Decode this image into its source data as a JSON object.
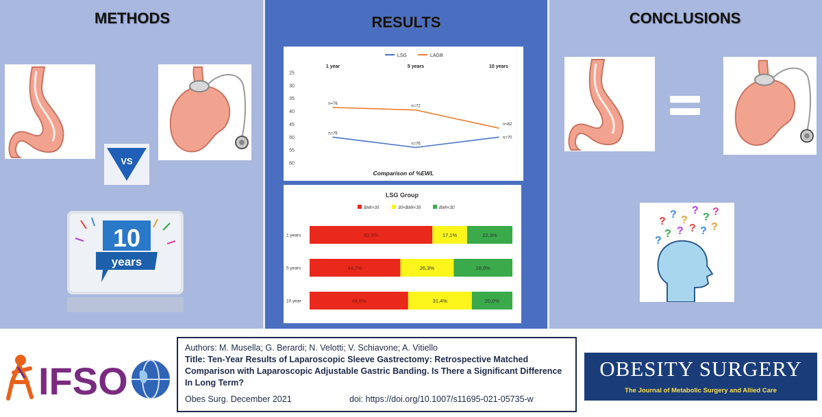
{
  "panels": {
    "methods_title": "METHODS",
    "results_title": "RESULTS",
    "conclusions_title": "CONCLUSIONS",
    "vs_label": "VS",
    "ten_label": "10",
    "years_label": "years",
    "equals_label": "="
  },
  "chart_data": [
    {
      "type": "line",
      "title": "Comparison of %EWL",
      "categories": [
        "1 year",
        "5 years",
        "10 years"
      ],
      "ylim": [
        25,
        60
      ],
      "y_ticks": [
        25,
        30,
        35,
        40,
        45,
        50,
        55,
        60
      ],
      "y_reversed": true,
      "legend_position": "top",
      "grid": false,
      "series": [
        {
          "name": "LSG",
          "color": "#4472c4",
          "values": [
            50,
            54,
            50
          ],
          "labels": [
            "n=76",
            "n=76",
            "n=70"
          ]
        },
        {
          "name": "LAGB",
          "color": "#ed7d31",
          "values": [
            38.5,
            39.5,
            46.5
          ],
          "labels": [
            "n=76",
            "n=72",
            "n=62"
          ]
        }
      ]
    },
    {
      "type": "bar",
      "stacked": true,
      "orientation": "horizontal",
      "title": "LSG Group",
      "categories": [
        "1 years",
        "5 years",
        "10 year"
      ],
      "legend_position": "top",
      "series": [
        {
          "name": "BMI>35",
          "color": "#e8291c",
          "values": [
            60.5,
            44.7,
            48.6
          ],
          "labels": [
            "60,5%",
            "44,7%",
            "48,6%"
          ]
        },
        {
          "name": "30<BMI<35",
          "color": "#fbf51c",
          "values": [
            17.1,
            26.3,
            31.4
          ],
          "labels": [
            "17,1%",
            "26,3%",
            "31,4%"
          ]
        },
        {
          "name": "BMI<30",
          "color": "#3aaa4a",
          "values": [
            22.3,
            28.9,
            20.0
          ],
          "labels": [
            "22,3%",
            "28,9%",
            "20,0%"
          ]
        }
      ]
    }
  ],
  "footer": {
    "authors": "Authors: M. Musella; G. Berardi; N. Velotti; V. Schiavone; A. Vitiello",
    "title_label": "Title:",
    "title_text": "Ten-Year Results of Laparoscopic Sleeve Gastrectomy: Retrospective Matched Comparison with Laparoscopic Adjustable Gastric Banding. Is There a Significant Difference In Long Term?",
    "journal_date": "Obes Surg. December 2021",
    "doi": "doi: https://doi.org/10.1007/s11695-021-05735-w"
  },
  "logos": {
    "ifso": "IFSO",
    "obesity_title": "OBESITY SURGERY",
    "obesity_subtitle": "The Journal of Metabolic Surgery and Allied Care"
  },
  "colors": {
    "panel_light": "#a9b8de",
    "panel_dark": "#4a6ec0",
    "stomach": "#f2a38f",
    "navy": "#1a3d7a"
  },
  "icons": [
    "sleeve-stomach-icon",
    "gastric-band-stomach-icon",
    "vs-badge-icon",
    "ten-years-badge-icon",
    "equals-icon",
    "question-head-icon",
    "globe-icon"
  ]
}
